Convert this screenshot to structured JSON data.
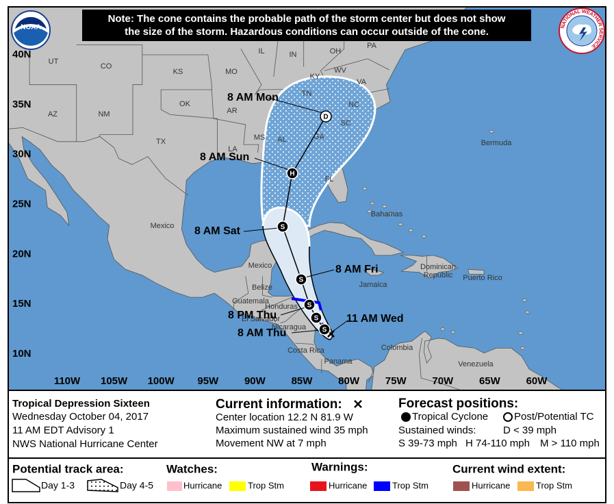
{
  "note": [
    "Note: The cone contains the probable path of the storm center but does not show",
    "the size of the storm. Hazardous conditions can occur outside of the cone."
  ],
  "logos": {
    "noaa": "NOAA",
    "nws": "NATIONAL WEATHER SERVICE"
  },
  "map": {
    "lat_labels": [
      "40N",
      "35N",
      "30N",
      "25N",
      "20N",
      "15N",
      "10N"
    ],
    "lon_labels": [
      "110W",
      "105W",
      "100W",
      "95W",
      "90W",
      "85W",
      "80W",
      "75W",
      "70W",
      "65W",
      "60W"
    ],
    "place_labels": [
      "UT",
      "CO",
      "KS",
      "MO",
      "IL",
      "IN",
      "OH",
      "PA",
      "WV",
      "VA",
      "KY",
      "TN",
      "NC",
      "SC",
      "AR",
      "OK",
      "AZ",
      "NM",
      "TX",
      "MS",
      "AL",
      "GA",
      "LA",
      "FL",
      "Mexico",
      "Bermuda",
      "Bahamas",
      "Mexico",
      "Belize",
      "Guatemala",
      "Honduras",
      "El Salvador",
      "Nicaragua",
      "Costa Rica",
      "Panama",
      "Colombia",
      "Venezuela",
      "Jamaica",
      "Dominican",
      "Republic",
      "Puerto Rico"
    ],
    "forecast_labels": [
      "8 AM Mon",
      "8 AM Sun",
      "8 AM Sat",
      "8 AM Fri",
      "8 PM Thu",
      "8 AM Thu",
      "11 AM Wed"
    ],
    "symbols": [
      "D",
      "H",
      "S",
      "S",
      "S",
      "S",
      "S"
    ]
  },
  "storm": {
    "name": "Tropical Depression Sixteen",
    "date": "Wednesday October 04, 2017",
    "advisory": "11 AM EDT Advisory 1",
    "source": "NWS National Hurricane Center"
  },
  "current": {
    "title": "Current information:",
    "location": "Center location 12.2 N 81.9 W",
    "wind": "Maximum sustained wind 35 mph",
    "movement": "Movement NW at 7 mph"
  },
  "forecast": {
    "title": "Forecast positions:",
    "tropical": "Tropical Cyclone",
    "post": "Post/Potential TC",
    "winds": "Sustained winds:",
    "d": "D < 39 mph",
    "s": "S 39-73 mph",
    "h": "H 74-110 mph",
    "m": "M > 110 mph"
  },
  "legend": {
    "track": {
      "title": "Potential track area:",
      "day13": "Day 1-3",
      "day45": "Day 4-5"
    },
    "watches": {
      "title": "Watches:",
      "hurricane": "Hurricane",
      "trop": "Trop Stm"
    },
    "warnings": {
      "title": "Warnings:",
      "hurricane": "Hurricane",
      "trop": "Trop Stm"
    },
    "wind": {
      "title": "Current wind extent:",
      "hurricane": "Hurricane",
      "trop": "Trop Stm"
    }
  }
}
